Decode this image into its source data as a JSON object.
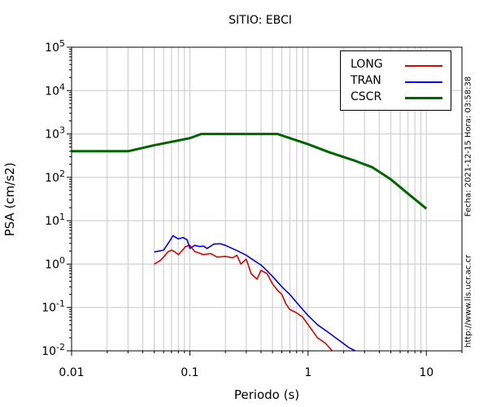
{
  "chart_data": {
    "type": "line",
    "title": "SITIO: EBCI",
    "xlabel": "Periodo (s)",
    "ylabel": "PSA (cm/s2)",
    "x_scale": "log",
    "y_scale": "log",
    "xlim": [
      0.01,
      20
    ],
    "ylim": [
      0.01,
      100000
    ],
    "grid": true,
    "legend_position": "top-right",
    "x_ticks": [
      {
        "value": 0.01,
        "label": "0.01"
      },
      {
        "value": 0.1,
        "label": "0.1"
      },
      {
        "value": 1,
        "label": "1"
      },
      {
        "value": 10,
        "label": "10"
      }
    ],
    "y_ticks": [
      {
        "value": 0.01,
        "base": "10",
        "exp": "-2"
      },
      {
        "value": 0.1,
        "base": "10",
        "exp": "-1"
      },
      {
        "value": 1,
        "base": "10",
        "exp": "0"
      },
      {
        "value": 10,
        "base": "10",
        "exp": "1"
      },
      {
        "value": 100,
        "base": "10",
        "exp": "2"
      },
      {
        "value": 1000,
        "base": "10",
        "exp": "3"
      },
      {
        "value": 10000,
        "base": "10",
        "exp": "4"
      },
      {
        "value": 100000,
        "base": "10",
        "exp": "5"
      }
    ],
    "series": [
      {
        "name": "LONG",
        "color": "#e00000",
        "points": [
          [
            0.05,
            1.0
          ],
          [
            0.056,
            1.2
          ],
          [
            0.06,
            1.45
          ],
          [
            0.065,
            1.9
          ],
          [
            0.07,
            2.1
          ],
          [
            0.075,
            1.9
          ],
          [
            0.08,
            1.65
          ],
          [
            0.087,
            2.1
          ],
          [
            0.092,
            2.55
          ],
          [
            0.1,
            2.7
          ],
          [
            0.11,
            1.95
          ],
          [
            0.12,
            1.8
          ],
          [
            0.13,
            1.65
          ],
          [
            0.15,
            1.75
          ],
          [
            0.17,
            1.45
          ],
          [
            0.2,
            1.5
          ],
          [
            0.23,
            1.4
          ],
          [
            0.25,
            1.6
          ],
          [
            0.27,
            1.0
          ],
          [
            0.3,
            1.3
          ],
          [
            0.33,
            0.6
          ],
          [
            0.37,
            0.45
          ],
          [
            0.4,
            0.72
          ],
          [
            0.45,
            0.6
          ],
          [
            0.5,
            0.35
          ],
          [
            0.55,
            0.25
          ],
          [
            0.6,
            0.2
          ],
          [
            0.65,
            0.12
          ],
          [
            0.7,
            0.09
          ],
          [
            0.8,
            0.075
          ],
          [
            0.9,
            0.06
          ],
          [
            1.0,
            0.04
          ],
          [
            1.1,
            0.028
          ],
          [
            1.2,
            0.02
          ],
          [
            1.4,
            0.015
          ],
          [
            1.6,
            0.01
          ]
        ]
      },
      {
        "name": "TRAN",
        "color": "#0000e0",
        "points": [
          [
            0.05,
            1.9
          ],
          [
            0.06,
            2.1
          ],
          [
            0.068,
            3.5
          ],
          [
            0.072,
            4.5
          ],
          [
            0.08,
            3.8
          ],
          [
            0.088,
            4.1
          ],
          [
            0.095,
            3.6
          ],
          [
            0.1,
            2.3
          ],
          [
            0.11,
            2.7
          ],
          [
            0.12,
            2.55
          ],
          [
            0.13,
            2.6
          ],
          [
            0.14,
            2.3
          ],
          [
            0.16,
            2.9
          ],
          [
            0.18,
            2.95
          ],
          [
            0.2,
            2.7
          ],
          [
            0.25,
            2.05
          ],
          [
            0.3,
            1.6
          ],
          [
            0.35,
            1.2
          ],
          [
            0.4,
            0.95
          ],
          [
            0.45,
            0.7
          ],
          [
            0.5,
            0.52
          ],
          [
            0.6,
            0.3
          ],
          [
            0.7,
            0.2
          ],
          [
            0.8,
            0.13
          ],
          [
            0.9,
            0.09
          ],
          [
            1.0,
            0.065
          ],
          [
            1.2,
            0.04
          ],
          [
            1.5,
            0.026
          ],
          [
            1.8,
            0.018
          ],
          [
            2.2,
            0.012
          ],
          [
            2.5,
            0.01
          ]
        ]
      },
      {
        "name": "CSCR",
        "color": "#006400",
        "points": [
          [
            0.01,
            400
          ],
          [
            0.03,
            400
          ],
          [
            0.05,
            550
          ],
          [
            0.1,
            800
          ],
          [
            0.125,
            1000
          ],
          [
            0.25,
            1000
          ],
          [
            0.55,
            1000
          ],
          [
            1.0,
            580
          ],
          [
            1.5,
            380
          ],
          [
            2.5,
            240
          ],
          [
            3.5,
            170
          ],
          [
            5.0,
            90
          ],
          [
            7.0,
            42
          ],
          [
            10.0,
            19
          ]
        ]
      }
    ]
  },
  "side_text": {
    "date": "Fecha: 2021-12-15  Hora: 03:58:38",
    "url": "http://www.lis.ucr.ac.cr"
  }
}
